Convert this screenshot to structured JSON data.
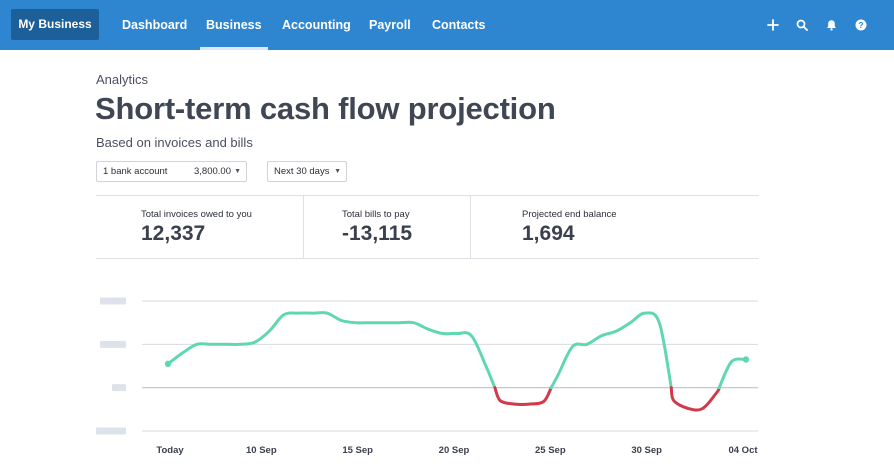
{
  "nav": {
    "org_label": "My Business",
    "items": [
      {
        "label": "Dashboard",
        "active": false
      },
      {
        "label": "Business",
        "active": true
      },
      {
        "label": "Accounting",
        "active": false
      },
      {
        "label": "Payroll",
        "active": false
      },
      {
        "label": "Contacts",
        "active": false
      }
    ],
    "icons": [
      "plus-icon",
      "search-icon",
      "bell-icon",
      "help-icon"
    ]
  },
  "header": {
    "eyebrow": "Analytics",
    "title": "Short-term cash flow projection",
    "subtitle": "Based on invoices and bills"
  },
  "filters": {
    "account_label": "1 bank account",
    "account_balance": "3,800.00",
    "period": "Next 30 days"
  },
  "summary": [
    {
      "label": "Total invoices owed to you",
      "value": "12,337"
    },
    {
      "label": "Total bills to pay",
      "value": "-13,115"
    },
    {
      "label": "Projected end balance",
      "value": "1,694"
    }
  ],
  "colors": {
    "nav_bg": "#2f86d0",
    "org_bg": "#1c5f99",
    "positive_line": "#5fd8b1",
    "negative_line": "#d2394b",
    "gridline": "#d6dbe1",
    "ytick_placeholder": "#dde3ea"
  },
  "chart_data": {
    "type": "line",
    "x_labels": [
      "Today",
      "10 Sep",
      "15 Sep",
      "20 Sep",
      "25 Sep",
      "30 Sep",
      "04 Oct"
    ],
    "x": [
      0,
      5,
      10,
      15,
      20,
      25,
      30,
      35,
      40,
      45,
      50,
      55,
      60,
      65,
      70,
      75,
      80,
      85,
      90,
      95,
      100,
      105,
      110,
      115,
      120,
      125,
      130,
      135,
      140,
      145,
      150,
      155,
      160,
      165,
      170,
      175,
      180,
      185,
      190,
      195,
      200
    ],
    "y": [
      0.55,
      0.8,
      1.0,
      1.0,
      1.0,
      1.0,
      1.05,
      1.3,
      1.68,
      1.72,
      1.72,
      1.72,
      1.55,
      1.5,
      1.5,
      1.5,
      1.5,
      1.5,
      1.35,
      1.25,
      1.25,
      1.2,
      0.5,
      -0.3,
      -0.38,
      -0.38,
      -0.32,
      0.3,
      0.95,
      1.0,
      1.2,
      1.3,
      1.5,
      1.72,
      1.5,
      -0.3,
      -0.48,
      -0.48,
      -0.1,
      0.6,
      0.65
    ],
    "ylim": [
      -1,
      2
    ],
    "baseline": 0,
    "grid": true,
    "ytick_labels_shown": false,
    "positive_color": "#5fd8b1",
    "negative_color": "#d2394b"
  }
}
